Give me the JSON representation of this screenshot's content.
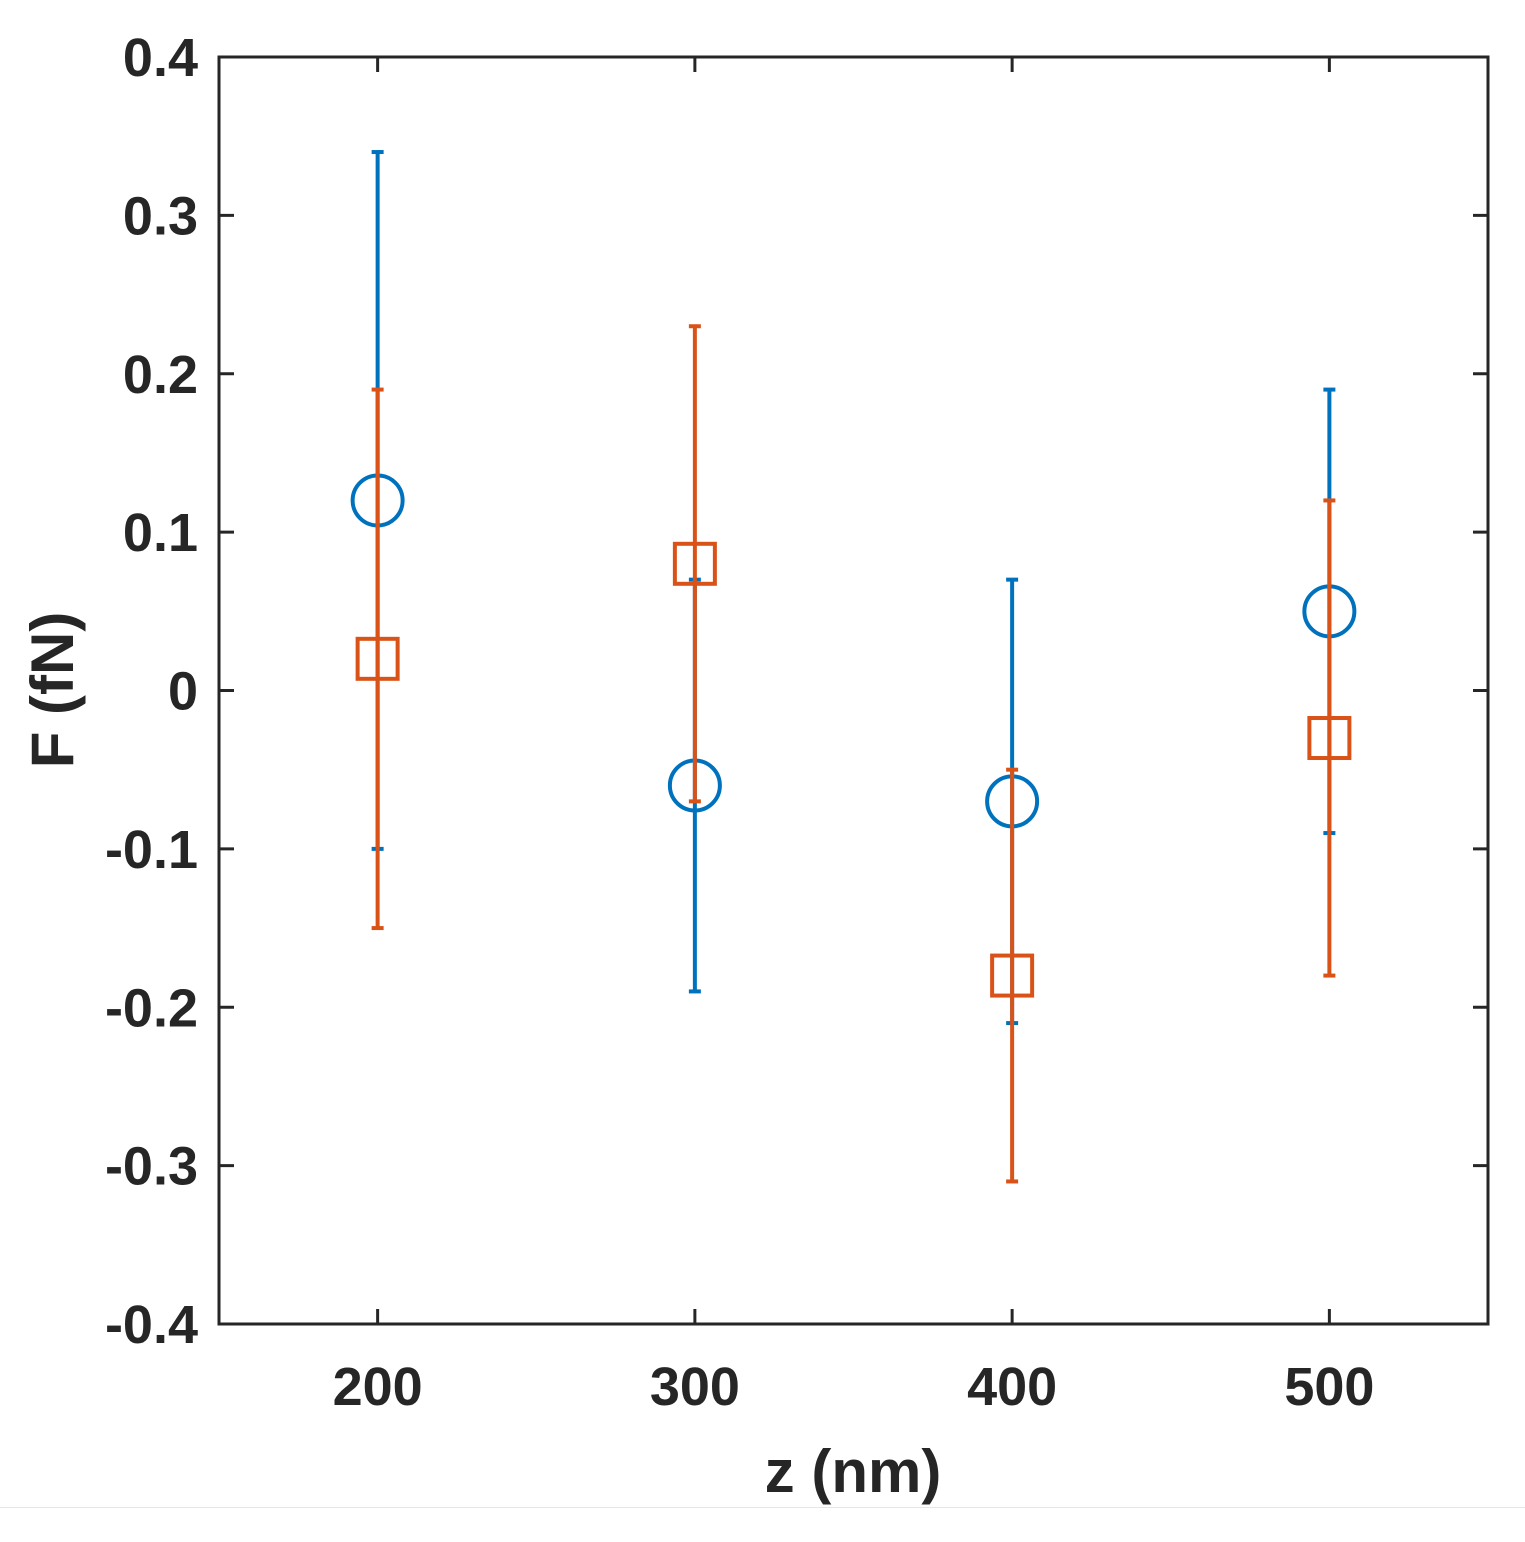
{
  "chart_data": {
    "type": "scatter",
    "xlabel": "z (nm)",
    "ylabel": "F (fN)",
    "xlim": [
      150,
      550
    ],
    "ylim": [
      -0.4,
      0.4
    ],
    "x_ticks": [
      200,
      300,
      400,
      500
    ],
    "x_tick_labels": [
      "200",
      "300",
      "400",
      "500"
    ],
    "y_ticks": [
      0.4,
      0.3,
      0.2,
      0.1,
      0,
      -0.1,
      -0.2,
      -0.3,
      -0.4
    ],
    "y_tick_labels": [
      "0.4",
      "0.3",
      "0.2",
      "0.1",
      "0",
      "-0.1",
      "-0.2",
      "-0.3",
      "-0.4"
    ],
    "grid": false,
    "legend": "none",
    "series": [
      {
        "marker": "circle",
        "color": "#0072BD",
        "x": [
          200,
          300,
          400,
          500
        ],
        "y": [
          0.12,
          -0.06,
          -0.07,
          0.05
        ],
        "err_low": [
          -0.1,
          -0.19,
          -0.21,
          -0.09
        ],
        "err_high": [
          0.34,
          0.07,
          0.07,
          0.19
        ]
      },
      {
        "marker": "square",
        "color": "#D95319",
        "x": [
          200,
          300,
          400,
          500
        ],
        "y": [
          0.02,
          0.08,
          -0.18,
          -0.03
        ],
        "err_low": [
          -0.15,
          -0.07,
          -0.31,
          -0.18
        ],
        "err_high": [
          0.19,
          0.23,
          -0.05,
          0.12
        ]
      }
    ]
  }
}
